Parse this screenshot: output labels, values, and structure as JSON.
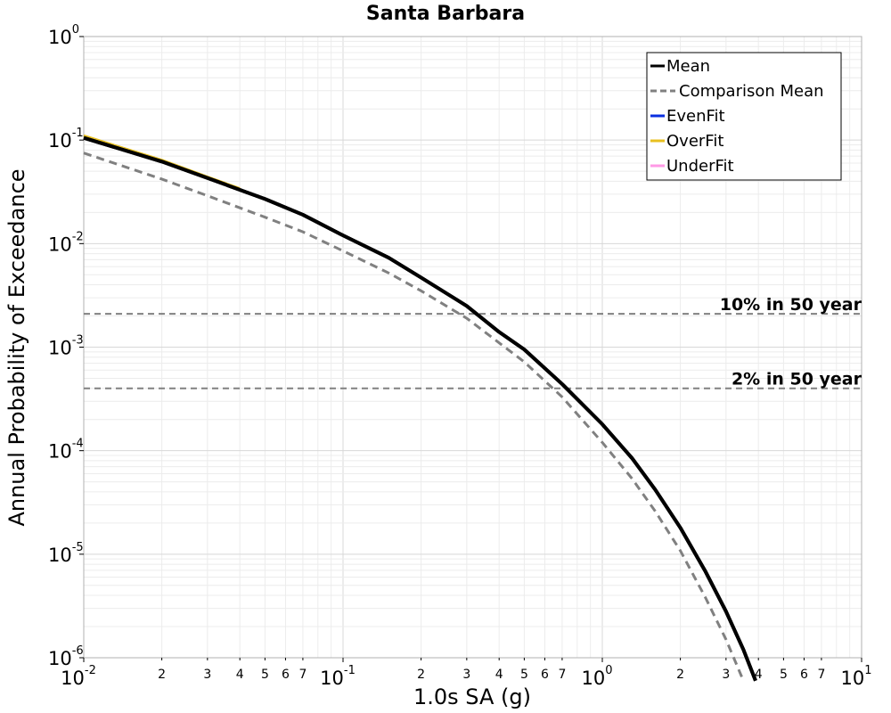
{
  "chart_data": {
    "type": "line",
    "title": "Santa Barbara",
    "xlabel": "1.0s SA (g)",
    "ylabel": "Annual Probability of Exceedance",
    "xscale": "log",
    "yscale": "log",
    "xlim": [
      0.01,
      10
    ],
    "ylim": [
      1e-06,
      1
    ],
    "grid": true,
    "legend_placement": "top-right",
    "x_major_ticks": [
      {
        "base": "10",
        "exp": "-2"
      },
      {
        "base": "10",
        "exp": "-1"
      },
      {
        "base": "10",
        "exp": "0"
      },
      {
        "base": "10",
        "exp": "1"
      }
    ],
    "y_major_ticks": [
      {
        "base": "10",
        "exp": "-6"
      },
      {
        "base": "10",
        "exp": "-5"
      },
      {
        "base": "10",
        "exp": "-4"
      },
      {
        "base": "10",
        "exp": "-3"
      },
      {
        "base": "10",
        "exp": "-2"
      },
      {
        "base": "10",
        "exp": "-1"
      },
      {
        "base": "10",
        "exp": "0"
      }
    ],
    "x_minor_labels": [
      "2",
      "3",
      "4",
      "5",
      "6",
      "7"
    ],
    "series": [
      {
        "name": "Mean",
        "color": "#000000",
        "style": "solid",
        "x": [
          0.01,
          0.02,
          0.03,
          0.05,
          0.07,
          0.1,
          0.15,
          0.2,
          0.3,
          0.4,
          0.5,
          0.7,
          1.0,
          1.3,
          1.6,
          2.0,
          2.5,
          3.0,
          3.5,
          3.9
        ],
        "y": [
          0.105,
          0.062,
          0.043,
          0.027,
          0.019,
          0.012,
          0.0073,
          0.0047,
          0.0025,
          0.0014,
          0.00095,
          0.00044,
          0.00018,
          8.5e-05,
          4.2e-05,
          1.8e-05,
          6.8e-06,
          2.8e-06,
          1.2e-06,
          6e-07
        ]
      },
      {
        "name": "Comparison Mean",
        "color": "#808080",
        "style": "dashed",
        "x": [
          0.01,
          0.02,
          0.03,
          0.05,
          0.07,
          0.1,
          0.15,
          0.2,
          0.3,
          0.4,
          0.5,
          0.7,
          1.0,
          1.3,
          1.6,
          2.0,
          2.5,
          3.0,
          3.5
        ],
        "y": [
          0.075,
          0.042,
          0.029,
          0.018,
          0.013,
          0.0085,
          0.0052,
          0.0035,
          0.0019,
          0.0011,
          0.00072,
          0.00033,
          0.00012,
          5.4e-05,
          2.6e-05,
          1.08e-05,
          3.8e-06,
          1.5e-06,
          6e-07
        ]
      },
      {
        "name": "EvenFit",
        "color": "#0a2fe0",
        "style": "solid",
        "x": [],
        "y": []
      },
      {
        "name": "OverFit",
        "color": "#e8c020",
        "style": "solid",
        "x": [
          0.01,
          0.02,
          0.03,
          0.04
        ],
        "y": [
          0.11,
          0.064,
          0.044,
          0.034
        ]
      },
      {
        "name": "UnderFit",
        "color": "#ff99e6",
        "style": "solid",
        "x": [],
        "y": []
      }
    ],
    "reference_lines": [
      {
        "label": "10% in 50 year",
        "y": 0.0021,
        "color": "#808080",
        "style": "dashed"
      },
      {
        "label": "2% in 50 year",
        "y": 0.0004,
        "color": "#808080",
        "style": "dashed"
      }
    ]
  }
}
